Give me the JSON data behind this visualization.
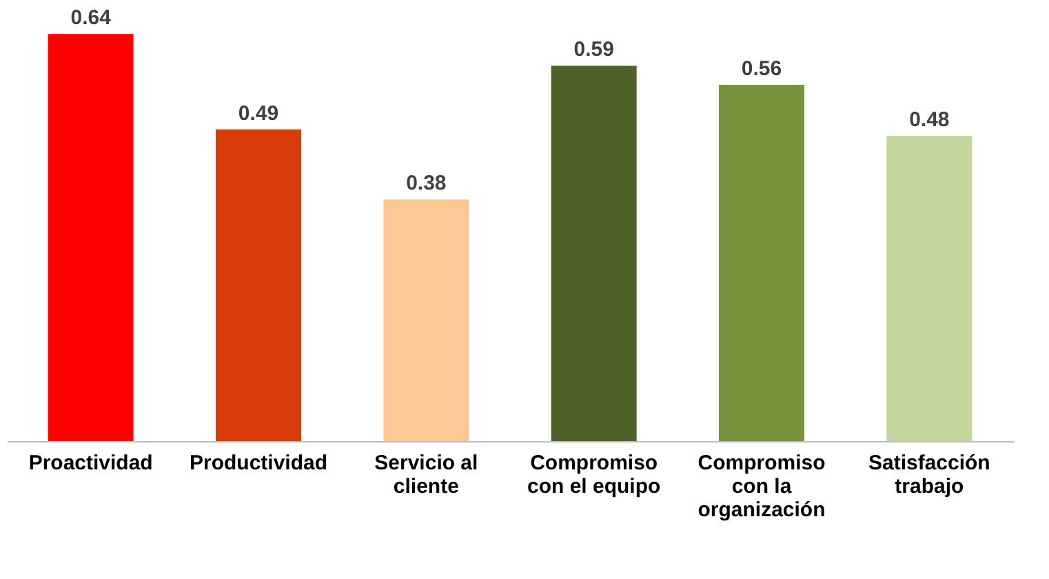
{
  "chart_data": {
    "type": "bar",
    "categories": [
      "Proactividad",
      "Productividad",
      "Servicio al cliente",
      "Compromiso con el equipo",
      "Compromiso con la organización",
      "Satisfacción trabajo"
    ],
    "values": [
      0.64,
      0.49,
      0.38,
      0.59,
      0.56,
      0.48
    ],
    "colors": [
      "#ff0000",
      "#d83c0a",
      "#fcc896",
      "#4f6228",
      "#77933c",
      "#c3d69b"
    ],
    "data_labels": true,
    "grid": false
  }
}
